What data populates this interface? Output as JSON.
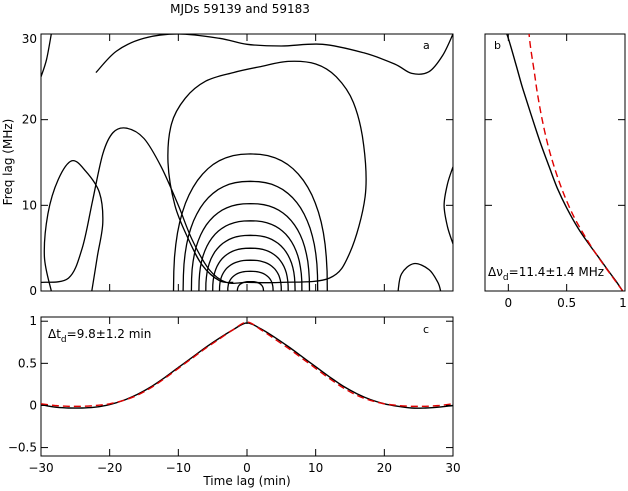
{
  "title": "MJDs 59139 and 59183",
  "xlabel": "Time lag (min)",
  "ylabel": "Freq lag (MHz)",
  "colors": {
    "line": "#000000",
    "fit": "#e00000"
  },
  "chart_data": [
    {
      "panel": "a",
      "type": "contour",
      "xlim": [
        -30,
        30
      ],
      "ylim": [
        0,
        30
      ],
      "yticks": [
        "0",
        "10",
        "20",
        "30"
      ],
      "peak": {
        "x": 0.5,
        "y": 0
      },
      "inner_contours": [
        {
          "width": 1.9,
          "height": 1.1
        },
        {
          "width": 3.3,
          "height": 2.3
        },
        {
          "width": 4.5,
          "height": 3.6
        },
        {
          "width": 5.5,
          "height": 5.0
        },
        {
          "width": 6.5,
          "height": 6.5
        },
        {
          "width": 7.5,
          "height": 8.2
        },
        {
          "width": 8.6,
          "height": 10.2
        },
        {
          "width": 9.8,
          "height": 12.8
        },
        {
          "width": 11.2,
          "height": 16.0
        }
      ],
      "outer_contours": [
        {
          "points": [
            [
              -30,
              1
            ],
            [
              -26,
              1.5
            ],
            [
              -24,
              5
            ],
            [
              -22.5,
              10.5
            ],
            [
              -21,
              16
            ],
            [
              -19.5,
              18.5
            ],
            [
              -17.5,
              19
            ],
            [
              -15,
              17.8
            ],
            [
              -12.5,
              14.5
            ],
            [
              -10,
              10
            ],
            [
              -8,
              6
            ],
            [
              -5.5,
              2.5
            ],
            [
              -3,
              1
            ],
            [
              0,
              1
            ],
            [
              5,
              1
            ],
            [
              12,
              1.5
            ],
            [
              15,
              4.5
            ],
            [
              17.2,
              11
            ],
            [
              17,
              17
            ],
            [
              15.5,
              22
            ],
            [
              13,
              25
            ],
            [
              10,
              26.5
            ],
            [
              6,
              26.8
            ],
            [
              2,
              26.2
            ],
            [
              -2,
              25.5
            ],
            [
              -6,
              24.5
            ],
            [
              -9,
              22.5
            ],
            [
              -11,
              19.5
            ],
            [
              -11.5,
              15
            ],
            [
              -10.5,
              10
            ],
            [
              -8.5,
              6
            ],
            [
              -6.5,
              3
            ],
            [
              -4,
              1.2
            ],
            [
              -2,
              1
            ]
          ]
        },
        {
          "points": [
            [
              -22,
              25.5
            ],
            [
              -19,
              28
            ],
            [
              -15,
              29.5
            ],
            [
              -10,
              30
            ],
            [
              -4,
              29.5
            ],
            [
              0,
              28.8
            ],
            [
              5,
              28.6
            ],
            [
              11,
              28.8
            ],
            [
              17,
              27.8
            ],
            [
              21.5,
              26.5
            ],
            [
              24,
              25.4
            ],
            [
              26.5,
              25.6
            ],
            [
              28.5,
              27.5
            ],
            [
              30,
              30
            ]
          ]
        },
        {
          "points": [
            [
              -30,
              25
            ],
            [
              -29.2,
              27
            ],
            [
              -28.5,
              30
            ]
          ]
        }
      ],
      "side_contours": [
        {
          "points": [
            [
              -28.5,
              0
            ],
            [
              -29.5,
              4
            ],
            [
              -29,
              9
            ],
            [
              -27.5,
              13
            ],
            [
              -25.5,
              15.2
            ],
            [
              -23.5,
              14
            ],
            [
              -21.5,
              11.5
            ],
            [
              -21,
              8
            ],
            [
              -21.8,
              4
            ],
            [
              -22.6,
              0
            ]
          ]
        },
        {
          "points": [
            [
              22,
              0
            ],
            [
              22.5,
              2
            ],
            [
              24.3,
              3.2
            ],
            [
              26.5,
              2.5
            ],
            [
              27.8,
              1
            ],
            [
              28.2,
              0
            ]
          ]
        },
        {
          "points": [
            [
              30,
              14.5
            ],
            [
              29.2,
              12.5
            ],
            [
              28.7,
              10
            ],
            [
              29.2,
              7.5
            ],
            [
              30,
              5.5
            ]
          ]
        }
      ],
      "label": "a"
    },
    {
      "panel": "b",
      "type": "line",
      "xlim": [
        -0.2,
        1
      ],
      "xticks": [
        "0",
        "0.5",
        "1"
      ],
      "ylim": [
        0,
        30
      ],
      "series": [
        {
          "style": "data",
          "x": [
            0.98,
            0.92,
            0.85,
            0.77,
            0.69,
            0.6,
            0.5,
            0.42,
            0.35,
            0.27,
            0.19,
            0.12,
            0.06,
            0.0,
            -0.02
          ],
          "y": [
            0,
            1.2,
            2.5,
            4.0,
            5.5,
            7.3,
            9.7,
            12.0,
            14.5,
            17.5,
            20.8,
            23.8,
            26.7,
            29.5,
            30.2
          ]
        },
        {
          "style": "fit",
          "x": [
            0.98,
            0.9,
            0.81,
            0.72,
            0.63,
            0.55,
            0.47,
            0.4,
            0.34,
            0.29,
            0.25,
            0.22,
            0.19,
            0.17
          ],
          "y": [
            0,
            1.5,
            3.2,
            5.0,
            7.0,
            9.0,
            11.5,
            14.2,
            17.0,
            20.0,
            23.0,
            25.8,
            28.5,
            31.0
          ]
        }
      ],
      "annotation": "Δν_d=11.4±1.4 MHz",
      "label": "b"
    },
    {
      "panel": "c",
      "type": "line",
      "xlim": [
        -30,
        30
      ],
      "xticks": [
        "−30",
        "−20",
        "−10",
        "0",
        "10",
        "20",
        "30"
      ],
      "ylim": [
        -0.6,
        1.05
      ],
      "yticks": [
        "−0.5",
        "0",
        "0.5",
        "1"
      ],
      "series": [
        {
          "style": "data",
          "x": [
            -30,
            -28,
            -26,
            -24,
            -22,
            -20,
            -18,
            -16,
            -14,
            -12,
            -10,
            -8,
            -6,
            -4,
            -2,
            0,
            2,
            4,
            6,
            8,
            10,
            12,
            14,
            16,
            18,
            20,
            22,
            24,
            26,
            28,
            30
          ],
          "y": [
            0.01,
            -0.02,
            -0.03,
            -0.03,
            -0.02,
            0.01,
            0.06,
            0.13,
            0.22,
            0.33,
            0.45,
            0.57,
            0.69,
            0.8,
            0.9,
            0.98,
            0.91,
            0.81,
            0.7,
            0.58,
            0.46,
            0.34,
            0.23,
            0.14,
            0.07,
            0.02,
            -0.01,
            -0.03,
            -0.03,
            -0.02,
            0.0
          ]
        },
        {
          "style": "fit",
          "x": [
            -30,
            -28,
            -26,
            -24,
            -22,
            -20,
            -18,
            -16,
            -14,
            -12,
            -10,
            -8,
            -6,
            -4,
            -2,
            0,
            2,
            4,
            6,
            8,
            10,
            12,
            14,
            16,
            18,
            20,
            22,
            24,
            26,
            28,
            30
          ],
          "y": [
            0.02,
            0.0,
            -0.01,
            -0.01,
            0.0,
            0.02,
            0.06,
            0.12,
            0.21,
            0.32,
            0.44,
            0.56,
            0.68,
            0.79,
            0.9,
            0.99,
            0.9,
            0.79,
            0.68,
            0.56,
            0.44,
            0.32,
            0.21,
            0.12,
            0.06,
            0.02,
            0.0,
            -0.01,
            -0.01,
            0.0,
            0.02
          ]
        }
      ],
      "annotation": "Δt_d=9.8±1.2 min",
      "label": "c"
    }
  ]
}
